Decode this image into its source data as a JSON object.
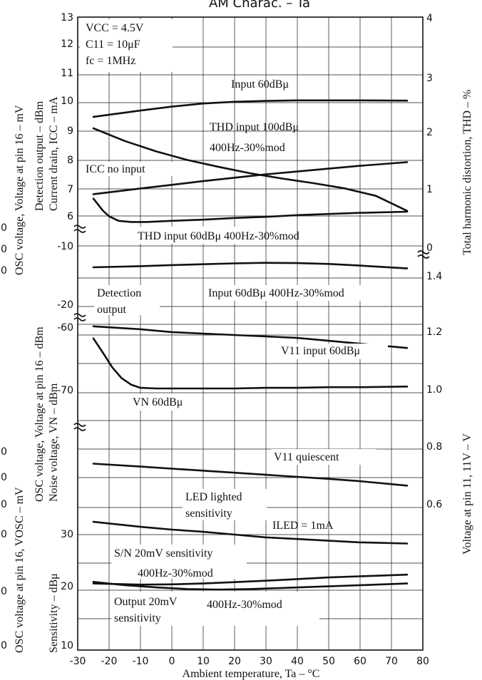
{
  "title": "AM Charac.  –  Ta",
  "conditions": [
    "VCC = 4.5V",
    "C11 = 10μF",
    "fc = 1MHz"
  ],
  "x_axis": {
    "label": "Ambient temperature, Ta  –  °C",
    "ticks": [
      "-30",
      "-20",
      "-10",
      "0",
      "10",
      "20",
      "30",
      "40",
      "50",
      "60",
      "70",
      "80"
    ],
    "range": [
      -30,
      80
    ]
  },
  "left_tick_labels": {
    "upper": [
      "13",
      "12",
      "11",
      "10",
      "9",
      "8",
      "7",
      "6"
    ],
    "detection": [
      "-10",
      "-20"
    ],
    "noise": [
      "-60",
      "-70"
    ],
    "sensitivity": [
      "30",
      "20",
      "10"
    ]
  },
  "right_tick_labels": {
    "thd": [
      "4",
      "3",
      "2",
      "1",
      "0"
    ],
    "voltage": [
      "1.4",
      "1.2",
      "1.0",
      "0.8",
      "0.6"
    ]
  },
  "left_axis_labels": [
    "OSC voltage, Voltage at pin 16  –  mV",
    "Detection output  –  dBm",
    "Current drain, ICC  –  mA",
    "OSC voltage, Voltage at pin 16  –  dBm",
    "Noise voltage, VN  –  dBm",
    "OSC voltage at pin 16, VOSC  –  mV",
    "Sensitivity  –  dBμ"
  ],
  "right_axis_labels": [
    "Total harmonic distortion, THD  –  %",
    "Voltage at pin 11, 11V  –  V"
  ],
  "left_edge_fragments": [
    "0",
    "0",
    "0",
    "0",
    "0",
    "0",
    "0",
    "0",
    "0"
  ],
  "annotations": {
    "input60": "Input 60dBμ",
    "thd100_a": "THD input 100dBμ",
    "thd100_b": "400Hz-30%mod",
    "icc": "ICC no input",
    "thd60": "THD input  60dBμ 400Hz-30%mod",
    "det_a": "Detection",
    "det_b": "output",
    "det_input": "Input  60dBμ 400Hz-30%mod",
    "v11_input": "V11 input 60dBμ",
    "vn": "VN 60dBμ",
    "v11_q": "V11 quiescent",
    "led_a": "LED lighted",
    "led_b": "sensitivity",
    "iled": "ILED = 1mA",
    "sn_a": "S/N 20mV sensitivity",
    "sn_b": "400Hz-30%mod",
    "out_a": "Output 20mV",
    "out_b": "sensitivity",
    "out_mod": "400Hz-30%mod"
  },
  "chart_data": {
    "type": "line",
    "title": "AM Charac.  –  Ta",
    "xlabel": "Ambient temperature, Ta  –  °C",
    "xlim": [
      -30,
      80
    ],
    "grid": true,
    "series": [
      {
        "name": "Input 60dBμ",
        "axis": "Current drain, ICC – mA",
        "x": [
          -25,
          -10,
          0,
          10,
          20,
          30,
          40,
          50,
          60,
          75
        ],
        "y": [
          9.5,
          9.72,
          9.86,
          9.97,
          10.03,
          10.06,
          10.08,
          10.08,
          10.08,
          10.07
        ]
      },
      {
        "name": "THD input 100dBμ 400Hz-30%mod",
        "axis": "Total harmonic distortion, THD – %",
        "x": [
          -25,
          -15,
          -5,
          5,
          15,
          25,
          35,
          45,
          55,
          65,
          75
        ],
        "y": [
          2.05,
          1.83,
          1.65,
          1.5,
          1.38,
          1.27,
          1.18,
          1.1,
          1.01,
          0.88,
          0.62
        ]
      },
      {
        "name": "ICC no input",
        "axis": "Current drain, ICC – mA",
        "x": [
          -25,
          -10,
          0,
          10,
          20,
          30,
          40,
          50,
          60,
          75
        ],
        "y": [
          6.77,
          6.97,
          7.1,
          7.23,
          7.35,
          7.47,
          7.57,
          7.67,
          7.77,
          7.9
        ]
      },
      {
        "name": "THD input 60dBμ 400Hz-30%mod",
        "axis": "Total harmonic distortion, THD – %",
        "x": [
          -25,
          -22,
          -20,
          -17,
          -13,
          -8,
          0,
          10,
          20,
          30,
          40,
          50,
          60,
          75
        ],
        "y": [
          0.83,
          0.62,
          0.52,
          0.44,
          0.42,
          0.42,
          0.44,
          0.46,
          0.49,
          0.51,
          0.54,
          0.56,
          0.58,
          0.6
        ]
      },
      {
        "name": "Detection output",
        "axis": "Detection output – dBm",
        "x": [
          -25,
          -10,
          0,
          10,
          20,
          30,
          40,
          50,
          60,
          75
        ],
        "y": [
          -13.8,
          -13.6,
          -13.4,
          -13.25,
          -13.1,
          -13.0,
          -13.05,
          -13.2,
          -13.5,
          -14.0
        ]
      },
      {
        "name": "V11 input 60dBμ",
        "axis": "Voltage at pin 11, 11V – V",
        "x": [
          -25,
          -10,
          0,
          10,
          20,
          30,
          40,
          50,
          60,
          75
        ],
        "y": [
          1.23,
          1.22,
          1.21,
          1.205,
          1.2,
          1.195,
          1.19,
          1.18,
          1.17,
          1.155
        ]
      },
      {
        "name": "VN 60dBμ",
        "axis": "Noise voltage, VN – dBm",
        "x": [
          -25,
          -22,
          -19,
          -16,
          -13,
          -10,
          -5,
          0,
          10,
          20,
          30,
          40,
          50,
          60,
          75
        ],
        "y": [
          -62.2,
          -64.4,
          -66.7,
          -68.4,
          -69.4,
          -69.9,
          -70.0,
          -70.0,
          -70.0,
          -70.0,
          -69.9,
          -69.9,
          -69.8,
          -69.8,
          -69.7
        ]
      },
      {
        "name": "V11 quiescent",
        "axis": "Voltage at pin 11, 11V – V",
        "x": [
          -25,
          -10,
          0,
          10,
          20,
          30,
          40,
          50,
          60,
          75
        ],
        "y": [
          0.75,
          0.74,
          0.733,
          0.726,
          0.719,
          0.712,
          0.705,
          0.698,
          0.69,
          0.675
        ]
      },
      {
        "name": "LED lighted sensitivity (ILED = 1mA)",
        "axis": "Sensitivity – dBμ",
        "x": [
          -25,
          -10,
          0,
          10,
          20,
          30,
          40,
          50,
          60,
          75
        ],
        "y": [
          32.3,
          31.4,
          30.9,
          30.5,
          30.0,
          29.5,
          29.2,
          28.9,
          28.6,
          28.4
        ]
      },
      {
        "name": "S/N 20mV sensitivity 400Hz-30%mod",
        "axis": "Sensitivity – dBμ",
        "x": [
          -25,
          -10,
          0,
          10,
          20,
          30,
          40,
          50,
          60,
          75
        ],
        "y": [
          21.2,
          21.0,
          21.05,
          21.2,
          21.45,
          21.7,
          22.0,
          22.3,
          22.5,
          22.8
        ]
      },
      {
        "name": "Output 20mV sensitivity 400Hz-30%mod",
        "axis": "Sensitivity – dBμ",
        "x": [
          -25,
          -15,
          -5,
          5,
          15,
          25,
          35,
          45,
          55,
          65,
          75
        ],
        "y": [
          21.5,
          20.9,
          20.5,
          20.2,
          20.1,
          20.2,
          20.4,
          20.6,
          20.8,
          21.0,
          21.2
        ]
      }
    ]
  }
}
